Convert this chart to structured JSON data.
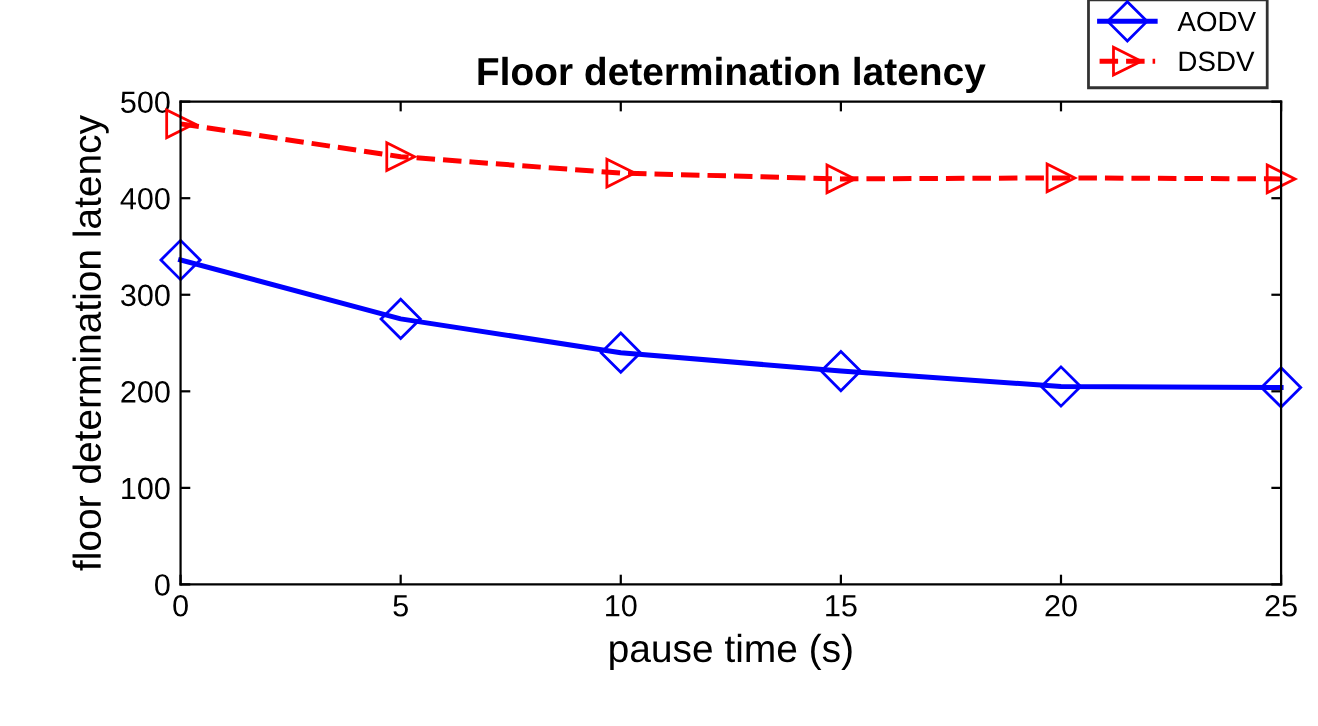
{
  "chart_data": {
    "type": "line",
    "title": "Floor determination latency",
    "xlabel": "pause time (s)",
    "ylabel": "floor determination latency",
    "x": [
      0,
      5,
      10,
      15,
      20,
      25
    ],
    "series": [
      {
        "name": "AODV",
        "color": "#0000ff",
        "values": [
          336,
          275,
          240,
          221,
          205,
          204
        ],
        "marker": "diamond",
        "line_style": "solid"
      },
      {
        "name": "DSDV",
        "color": "#ff0000",
        "values": [
          477,
          443,
          426,
          420,
          421,
          420
        ],
        "marker": "triangle",
        "line_style": "dashed"
      }
    ],
    "xlim": [
      0,
      25
    ],
    "ylim": [
      0,
      500
    ],
    "xticks": [
      0,
      5,
      10,
      15,
      20,
      25
    ],
    "yticks": [
      0,
      100,
      200,
      300,
      400,
      500
    ],
    "grid": false,
    "legend": "top right"
  }
}
